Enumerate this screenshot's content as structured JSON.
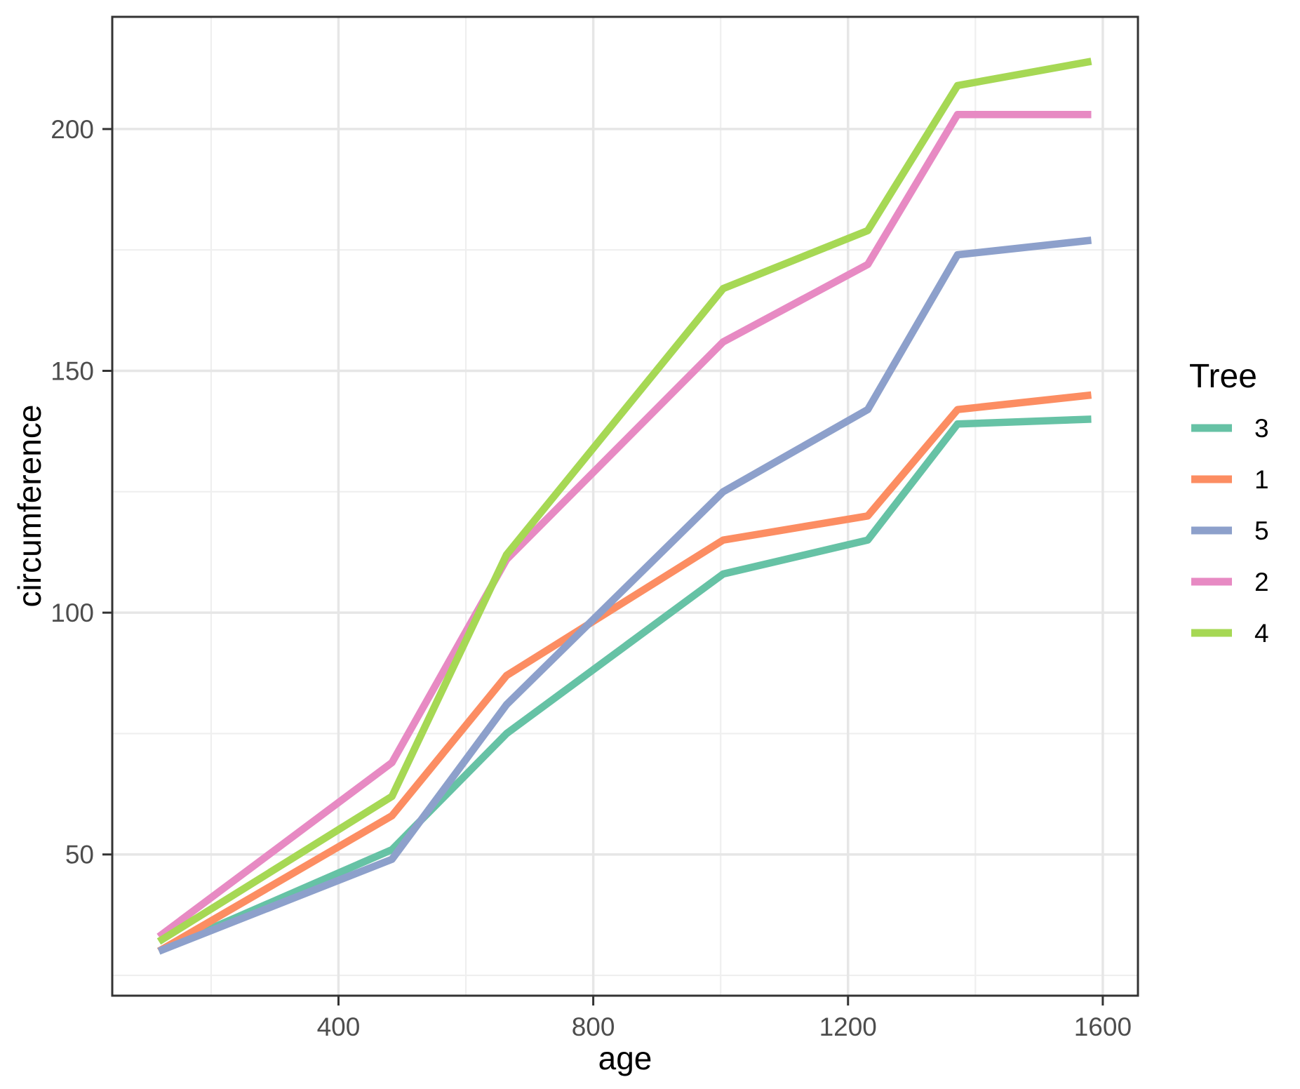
{
  "chart_data": {
    "type": "line",
    "title": "",
    "xlabel": "age",
    "ylabel": "circumference",
    "legend_title": "Tree",
    "legend_position": "right",
    "grid": "on",
    "xlim": [
      44.8,
      1655.2
    ],
    "ylim": [
      20.8,
      223.2
    ],
    "x_major_ticks": [
      400,
      800,
      1200,
      1600
    ],
    "x_minor_gridlines": [
      200,
      600,
      1000,
      1400
    ],
    "y_major_ticks": [
      50,
      100,
      150,
      200
    ],
    "y_minor_gridlines": [
      25,
      75,
      125,
      175
    ],
    "x": [
      118,
      484,
      664,
      1004,
      1231,
      1372,
      1582
    ],
    "series": [
      {
        "name": "3",
        "color": "#66C2A5",
        "values": [
          30,
          51,
          75,
          108,
          115,
          139,
          140
        ]
      },
      {
        "name": "1",
        "color": "#FC8D62",
        "values": [
          30,
          58,
          87,
          115,
          120,
          142,
          145
        ]
      },
      {
        "name": "5",
        "color": "#8DA0CB",
        "values": [
          30,
          49,
          81,
          125,
          142,
          174,
          177
        ]
      },
      {
        "name": "2",
        "color": "#E78AC3",
        "values": [
          33,
          69,
          111,
          156,
          172,
          203,
          203
        ]
      },
      {
        "name": "4",
        "color": "#A6D854",
        "values": [
          32,
          62,
          112,
          167,
          179,
          209,
          214
        ]
      }
    ],
    "styles": {
      "background": "#FFFFFF",
      "grid_major_color": "#E6E6E6",
      "grid_minor_color": "#EFEFEF",
      "panel_border_color": "#333333",
      "tick_mark_color": "#333333",
      "tick_label_color": "#4D4D4D",
      "axis_title_color": "#000000",
      "line_width": 10.5
    }
  }
}
